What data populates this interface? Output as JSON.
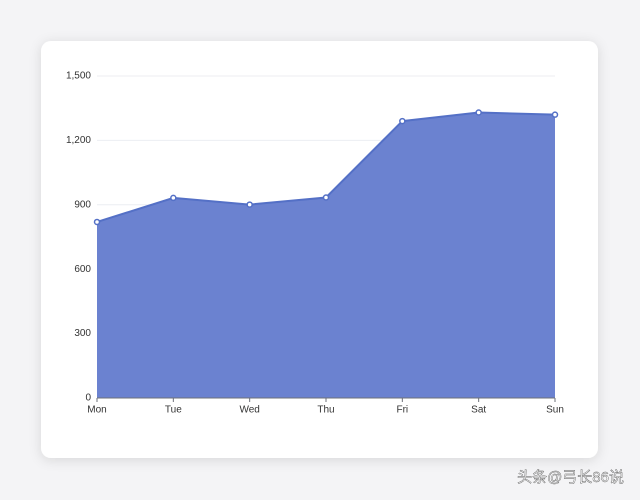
{
  "chart_data": {
    "type": "area",
    "categories": [
      "Mon",
      "Tue",
      "Wed",
      "Thu",
      "Fri",
      "Sat",
      "Sun"
    ],
    "values": [
      820,
      932,
      901,
      934,
      1290,
      1330,
      1320
    ],
    "color": "#6b82d0",
    "line_color": "#5470c6",
    "ylim": [
      0,
      1500
    ],
    "yticks": [
      0,
      300,
      600,
      900,
      {
        "value": 1200,
        "label": "1,200"
      },
      {
        "value": 1500,
        "label": "1,500"
      }
    ],
    "grid": true,
    "watermark": "头条@弓长86说"
  }
}
